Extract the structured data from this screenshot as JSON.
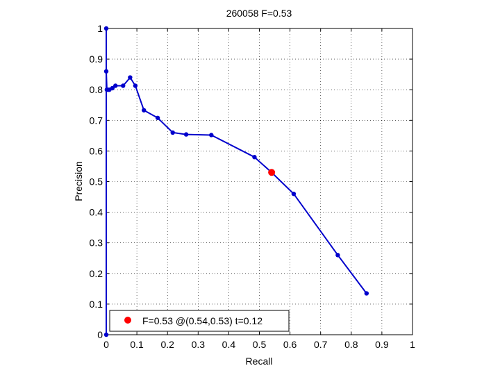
{
  "chart_data": {
    "type": "line",
    "title": "260058 F=0.53",
    "xlabel": "Recall",
    "ylabel": "Precision",
    "xlim": [
      0,
      1
    ],
    "ylim": [
      0,
      1
    ],
    "xticks": [
      "0",
      "0.1",
      "0.2",
      "0.3",
      "0.4",
      "0.5",
      "0.6",
      "0.7",
      "0.8",
      "0.9",
      "1"
    ],
    "yticks": [
      "0",
      "0.1",
      "0.2",
      "0.3",
      "0.4",
      "0.5",
      "0.6",
      "0.7",
      "0.8",
      "0.9",
      "1"
    ],
    "grid": true,
    "series": [
      {
        "color": "#0000cc",
        "points": [
          [
            0.0,
            0.0
          ],
          [
            0.0,
            1.0
          ],
          [
            0.0,
            0.86
          ],
          [
            0.002,
            0.8
          ],
          [
            0.005,
            0.8
          ],
          [
            0.01,
            0.8
          ],
          [
            0.02,
            0.805
          ],
          [
            0.03,
            0.813
          ],
          [
            0.055,
            0.813
          ],
          [
            0.078,
            0.84
          ],
          [
            0.095,
            0.813
          ],
          [
            0.123,
            0.733
          ],
          [
            0.168,
            0.708
          ],
          [
            0.217,
            0.66
          ],
          [
            0.261,
            0.654
          ],
          [
            0.343,
            0.652
          ],
          [
            0.484,
            0.58
          ],
          [
            0.54,
            0.53
          ],
          [
            0.612,
            0.46
          ],
          [
            0.756,
            0.26
          ],
          [
            0.85,
            0.135
          ]
        ]
      }
    ],
    "highlight": {
      "x": 0.54,
      "y": 0.53,
      "color": "#ff0000"
    },
    "legend": {
      "text": "F=0.53 @(0.54,0.53) t=0.12",
      "position": "bottom-left"
    }
  }
}
